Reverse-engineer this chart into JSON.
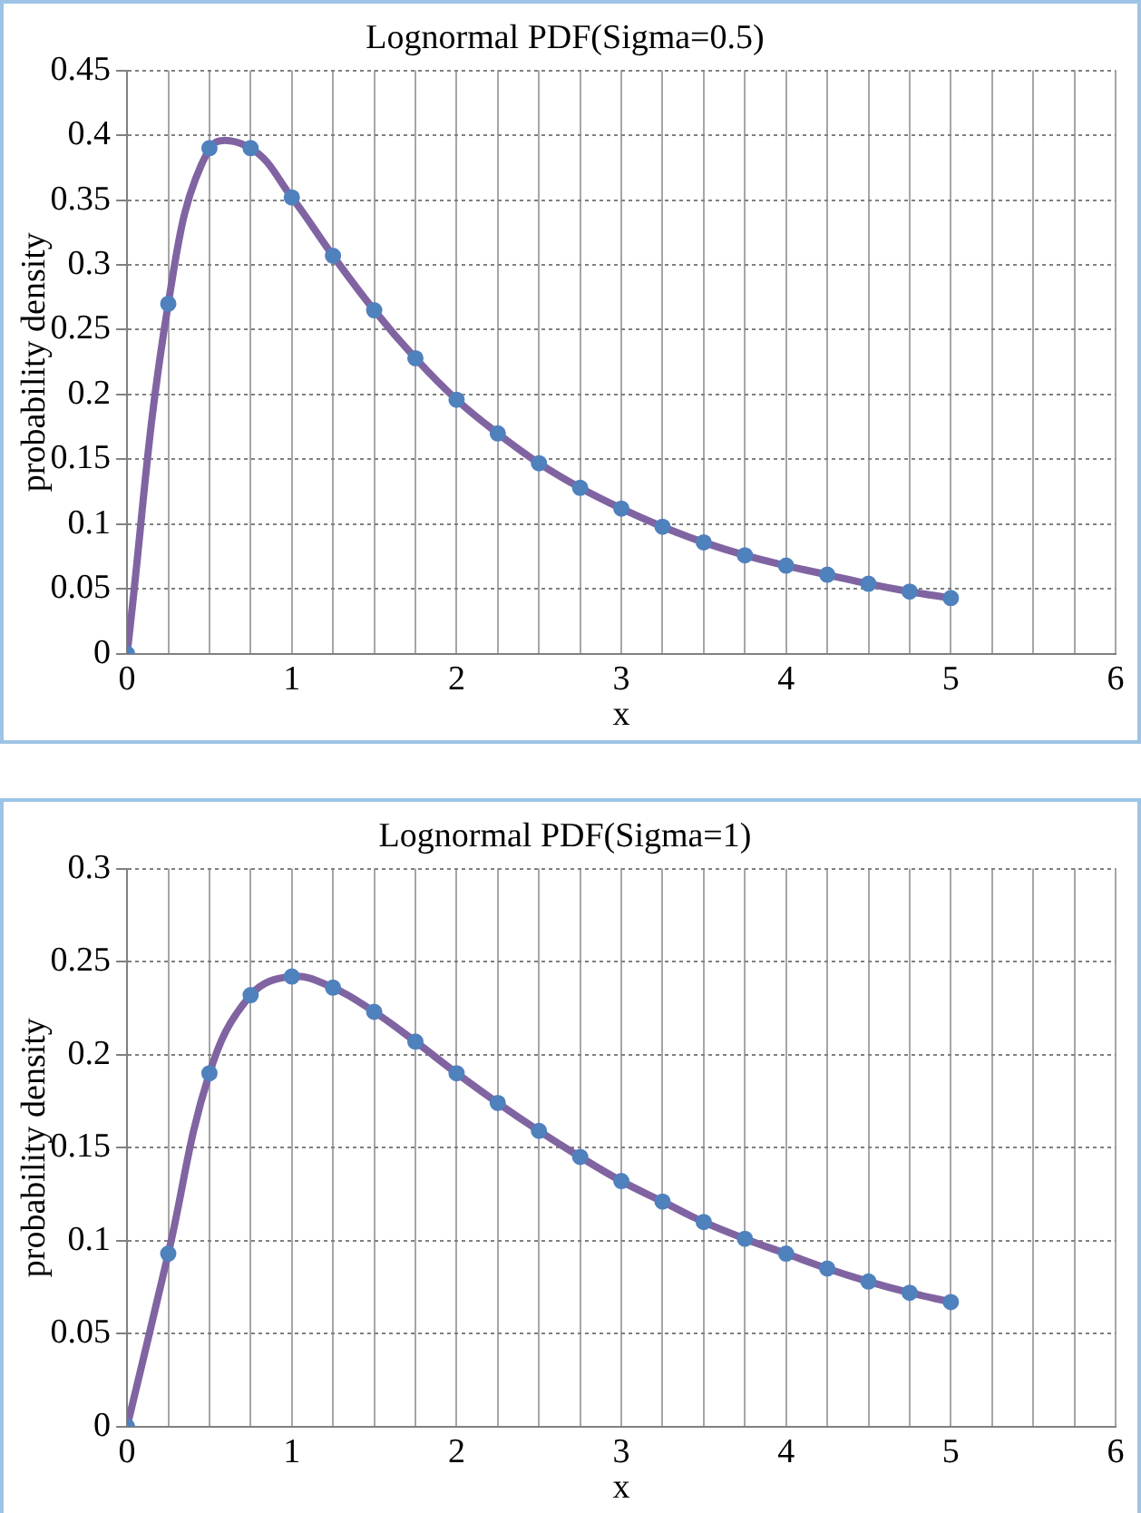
{
  "chart_data": [
    {
      "type": "line",
      "title": "Lognormal PDF(Sigma=0.5)",
      "xlabel": "x",
      "ylabel": "probability density",
      "x": [
        0,
        0.25,
        0.5,
        0.75,
        1,
        1.25,
        1.5,
        1.75,
        2,
        2.25,
        2.5,
        2.75,
        3,
        3.25,
        3.5,
        3.75,
        4,
        4.25,
        4.5,
        4.75,
        5
      ],
      "series": [
        {
          "color": "#8064a2",
          "marker": "none",
          "values": [
            0,
            0.27,
            0.39,
            0.39,
            0.352,
            0.307,
            0.265,
            0.228,
            0.196,
            0.17,
            0.147,
            0.128,
            0.112,
            0.098,
            0.086,
            0.076,
            0.068,
            0.061,
            0.054,
            0.048,
            0.043
          ]
        },
        {
          "type": "scatter",
          "color": "#4f81bd",
          "marker": "circle",
          "values": [
            0,
            0.27,
            0.39,
            0.39,
            0.352,
            0.307,
            0.265,
            0.228,
            0.196,
            0.17,
            0.147,
            0.128,
            0.112,
            0.098,
            0.086,
            0.076,
            0.068,
            0.061,
            0.054,
            0.048,
            0.043
          ]
        }
      ],
      "xlim": [
        0,
        6
      ],
      "ylim": [
        0,
        0.45
      ],
      "xticks": [
        0,
        {
          "value": 0.25,
          "label": null
        },
        {
          "value": 0.5,
          "label": null
        },
        {
          "value": 0.75,
          "label": null
        },
        1,
        {
          "value": 1.25,
          "label": null
        },
        {
          "value": 1.5,
          "label": null
        },
        {
          "value": 1.75,
          "label": null
        },
        2,
        {
          "value": 2.25,
          "label": null
        },
        {
          "value": 2.5,
          "label": null
        },
        {
          "value": 2.75,
          "label": null
        },
        3,
        {
          "value": 3.25,
          "label": null
        },
        {
          "value": 3.5,
          "label": null
        },
        {
          "value": 3.75,
          "label": null
        },
        4,
        {
          "value": 4.25,
          "label": null
        },
        {
          "value": 4.5,
          "label": null
        },
        {
          "value": 4.75,
          "label": null
        },
        5,
        {
          "value": 5.25,
          "label": null
        },
        {
          "value": 5.5,
          "label": null
        },
        {
          "value": 5.75,
          "label": null
        },
        6
      ],
      "yticks": [
        0,
        0.05,
        0.1,
        0.15,
        0.2,
        0.25,
        0.3,
        0.35,
        0.4,
        0.45
      ],
      "grid": true,
      "legend": false
    },
    {
      "type": "line",
      "title": "Lognormal PDF(Sigma=1)",
      "xlabel": "x",
      "ylabel": "probability density",
      "x": [
        0,
        0.25,
        0.5,
        0.75,
        1,
        1.25,
        1.5,
        1.75,
        2,
        2.25,
        2.5,
        2.75,
        3,
        3.25,
        3.5,
        3.75,
        4,
        4.25,
        4.5,
        4.75,
        5
      ],
      "series": [
        {
          "color": "#8064a2",
          "marker": "none",
          "values": [
            0,
            0.093,
            0.19,
            0.232,
            0.242,
            0.236,
            0.223,
            0.207,
            0.19,
            0.174,
            0.159,
            0.145,
            0.132,
            0.121,
            0.11,
            0.101,
            0.093,
            0.085,
            0.078,
            0.072,
            0.067
          ]
        },
        {
          "type": "scatter",
          "color": "#4f81bd",
          "marker": "circle",
          "values": [
            0,
            0.093,
            0.19,
            0.232,
            0.242,
            0.236,
            0.223,
            0.207,
            0.19,
            0.174,
            0.159,
            0.145,
            0.132,
            0.121,
            0.11,
            0.101,
            0.093,
            0.085,
            0.078,
            0.072,
            0.067
          ]
        }
      ],
      "xlim": [
        0,
        6
      ],
      "ylim": [
        0,
        0.3
      ],
      "xticks": [
        0,
        {
          "value": 0.25,
          "label": null
        },
        {
          "value": 0.5,
          "label": null
        },
        {
          "value": 0.75,
          "label": null
        },
        1,
        {
          "value": 1.25,
          "label": null
        },
        {
          "value": 1.5,
          "label": null
        },
        {
          "value": 1.75,
          "label": null
        },
        2,
        {
          "value": 2.25,
          "label": null
        },
        {
          "value": 2.5,
          "label": null
        },
        {
          "value": 2.75,
          "label": null
        },
        3,
        {
          "value": 3.25,
          "label": null
        },
        {
          "value": 3.5,
          "label": null
        },
        {
          "value": 3.75,
          "label": null
        },
        4,
        {
          "value": 4.25,
          "label": null
        },
        {
          "value": 4.5,
          "label": null
        },
        {
          "value": 4.75,
          "label": null
        },
        5,
        {
          "value": 5.25,
          "label": null
        },
        {
          "value": 5.5,
          "label": null
        },
        {
          "value": 5.75,
          "label": null
        },
        6
      ],
      "yticks": [
        0,
        0.05,
        0.1,
        0.15,
        0.2,
        0.25,
        0.3
      ],
      "grid": true,
      "legend": false
    }
  ]
}
